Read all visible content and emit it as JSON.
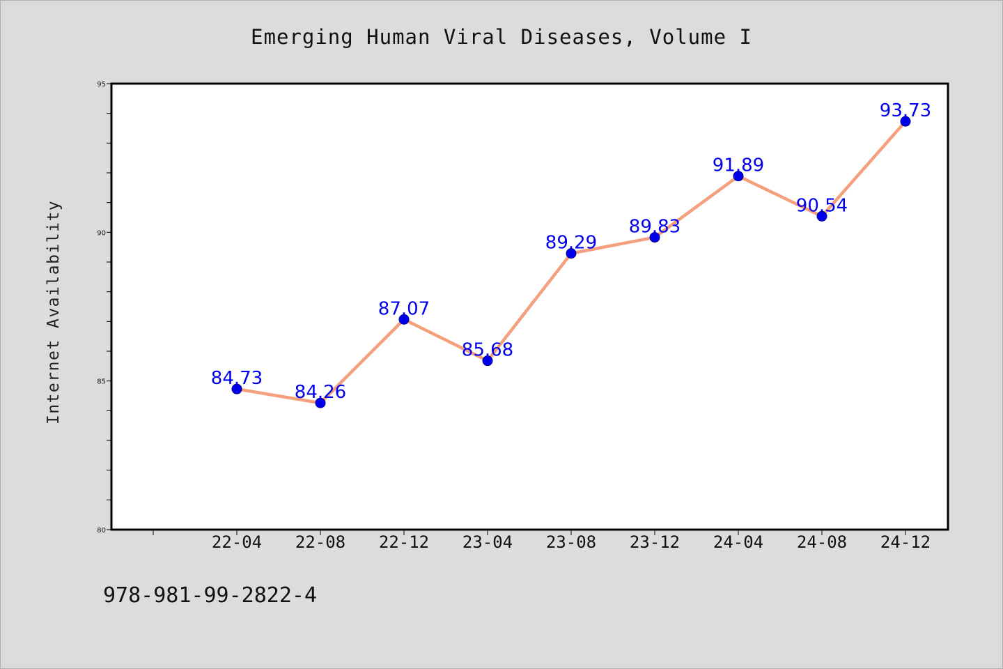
{
  "chart_data": {
    "type": "line",
    "title": "Emerging Human Viral Diseases, Volume I",
    "ylabel": "Internet Availability",
    "xlabel": "",
    "categories": [
      "22-04",
      "22-08",
      "22-12",
      "23-04",
      "23-08",
      "23-12",
      "24-04",
      "24-08",
      "24-12"
    ],
    "series": [
      {
        "values": [
          84.73,
          84.26,
          87.07,
          85.68,
          89.29,
          89.83,
          91.89,
          90.54,
          93.73
        ],
        "labels": [
          "84.73",
          "84.26",
          "87.07",
          "85.68",
          "89.29",
          "89.83",
          "91.89",
          "90.54",
          "93.73"
        ],
        "line_color": "#f4a07e",
        "marker_color": "#0000ee"
      }
    ],
    "ylim": [
      80,
      95
    ],
    "yticks": [
      "80",
      "85",
      "90",
      "95"
    ],
    "grid": false,
    "legend": "none"
  },
  "footer": {
    "isbn": "978-981-99-2822-4"
  }
}
